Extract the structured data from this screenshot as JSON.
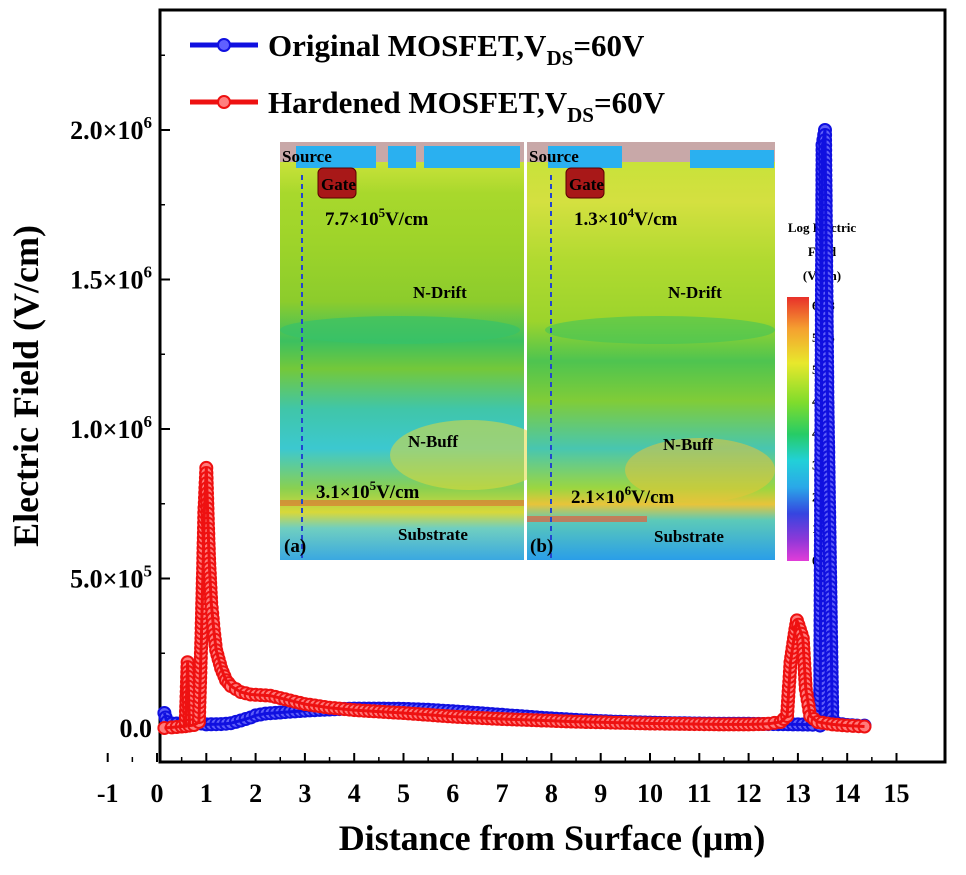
{
  "chart_data": {
    "type": "line",
    "xlabel": "Distance from Surface (μm)",
    "ylabel": "Electric Field (V/cm)",
    "xlim": [
      -1,
      15
    ],
    "ylim": [
      -100000,
      2350000
    ],
    "xticks": [
      -1,
      0,
      1,
      2,
      3,
      4,
      5,
      6,
      7,
      8,
      9,
      10,
      11,
      12,
      13,
      14,
      15
    ],
    "yticks": [
      {
        "value": 0,
        "label": "0.0"
      },
      {
        "value": 500000,
        "mant": "5.0×10",
        "exp": "5"
      },
      {
        "value": 1000000,
        "mant": "1.0×10",
        "exp": "6"
      },
      {
        "value": 1500000,
        "mant": "1.5×10",
        "exp": "6"
      },
      {
        "value": 2000000,
        "mant": "2.0×10",
        "exp": "6"
      }
    ],
    "legend_position": "top-left",
    "series": [
      {
        "name": "Original MOSFET,V",
        "name_sub": "DS",
        "name_suffix": "=60V",
        "color": "#1010e0",
        "points": [
          [
            0.15,
            50000
          ],
          [
            0.2,
            20000
          ],
          [
            0.3,
            15000
          ],
          [
            0.5,
            15000
          ],
          [
            0.7,
            15000
          ],
          [
            0.9,
            15000
          ],
          [
            1.0,
            12000
          ],
          [
            1.3,
            13000
          ],
          [
            1.5,
            16000
          ],
          [
            1.7,
            25000
          ],
          [
            1.9,
            35000
          ],
          [
            2.0,
            42000
          ],
          [
            2.2,
            48000
          ],
          [
            2.5,
            52000
          ],
          [
            3.0,
            58000
          ],
          [
            3.5,
            62000
          ],
          [
            4.0,
            65000
          ],
          [
            4.5,
            65000
          ],
          [
            5.0,
            64000
          ],
          [
            5.5,
            61000
          ],
          [
            6.0,
            56000
          ],
          [
            6.5,
            50000
          ],
          [
            7.0,
            44000
          ],
          [
            7.5,
            38000
          ],
          [
            8.0,
            32000
          ],
          [
            8.5,
            27000
          ],
          [
            9.0,
            23000
          ],
          [
            9.5,
            20000
          ],
          [
            10.0,
            18000
          ],
          [
            10.5,
            16000
          ],
          [
            11.0,
            15000
          ],
          [
            11.5,
            14000
          ],
          [
            12.0,
            14000
          ],
          [
            12.5,
            13000
          ],
          [
            13.0,
            12000
          ],
          [
            13.3,
            11000
          ],
          [
            13.45,
            8000
          ],
          [
            13.5,
            1950000
          ],
          [
            13.55,
            2000000
          ],
          [
            13.6,
            1090000
          ],
          [
            13.7,
            20000
          ],
          [
            13.8,
            15000
          ],
          [
            14.0,
            10000
          ],
          [
            14.2,
            8000
          ],
          [
            14.35,
            8000
          ]
        ]
      },
      {
        "name": "Hardened MOSFET,V",
        "name_sub": "DS",
        "name_suffix": "=60V",
        "color": "#ee1111",
        "points": [
          [
            0.15,
            0
          ],
          [
            0.3,
            2000
          ],
          [
            0.5,
            5000
          ],
          [
            0.58,
            6000
          ],
          [
            0.62,
            220000
          ],
          [
            0.66,
            8000
          ],
          [
            0.75,
            10000
          ],
          [
            0.85,
            20000
          ],
          [
            0.9,
            300000
          ],
          [
            0.93,
            500000
          ],
          [
            0.96,
            720000
          ],
          [
            1.0,
            870000
          ],
          [
            1.03,
            700000
          ],
          [
            1.06,
            550000
          ],
          [
            1.1,
            420000
          ],
          [
            1.15,
            330000
          ],
          [
            1.2,
            260000
          ],
          [
            1.3,
            200000
          ],
          [
            1.4,
            160000
          ],
          [
            1.5,
            140000
          ],
          [
            1.7,
            120000
          ],
          [
            1.9,
            112000
          ],
          [
            2.1,
            110000
          ],
          [
            2.3,
            108000
          ],
          [
            2.5,
            100000
          ],
          [
            3.0,
            80000
          ],
          [
            3.5,
            68000
          ],
          [
            4.0,
            60000
          ],
          [
            4.5,
            55000
          ],
          [
            5.0,
            50000
          ],
          [
            5.5,
            44000
          ],
          [
            6.0,
            38000
          ],
          [
            6.5,
            34000
          ],
          [
            7.0,
            30000
          ],
          [
            7.5,
            27000
          ],
          [
            8.0,
            24000
          ],
          [
            8.5,
            21000
          ],
          [
            9.0,
            19000
          ],
          [
            9.5,
            17000
          ],
          [
            10.0,
            15000
          ],
          [
            10.5,
            14000
          ],
          [
            11.0,
            13000
          ],
          [
            11.5,
            12000
          ],
          [
            12.0,
            12000
          ],
          [
            12.4,
            14000
          ],
          [
            12.65,
            20000
          ],
          [
            12.78,
            40000
          ],
          [
            12.85,
            220000
          ],
          [
            12.92,
            300000
          ],
          [
            12.98,
            360000
          ],
          [
            13.04,
            330000
          ],
          [
            13.1,
            300000
          ],
          [
            13.16,
            130000
          ],
          [
            13.25,
            40000
          ],
          [
            13.4,
            20000
          ],
          [
            13.7,
            12000
          ],
          [
            14.0,
            8000
          ],
          [
            14.35,
            5000
          ]
        ]
      }
    ],
    "inset": {
      "colorbar_title": [
        "Log Electric",
        "Field",
        "(V/cm)"
      ],
      "colorbar_ticks": [
        "6.58",
        "5.95",
        "5.31",
        "4.68",
        "4.04",
        "3.41",
        "2.46",
        "1.51",
        "0.56"
      ],
      "panel_a": {
        "tag": "(a)",
        "source": "Source",
        "gate": "Gate",
        "top_value": "7.7×10",
        "top_exp": "5",
        "top_unit": "V/cm",
        "drift": "N-Drift",
        "buff": "N-Buff",
        "bottom_value": "3.1×10",
        "bottom_exp": "5",
        "bottom_unit": "V/cm",
        "substrate": "Substrate"
      },
      "panel_b": {
        "tag": "(b)",
        "source": "Source",
        "gate": "Gate",
        "top_value": "1.3×10",
        "top_exp": "4",
        "top_unit": "V/cm",
        "drift": "N-Drift",
        "buff": "N-Buff",
        "bottom_value": "2.1×10",
        "bottom_exp": "6",
        "bottom_unit": "V/cm",
        "substrate": "Substrate"
      }
    }
  }
}
